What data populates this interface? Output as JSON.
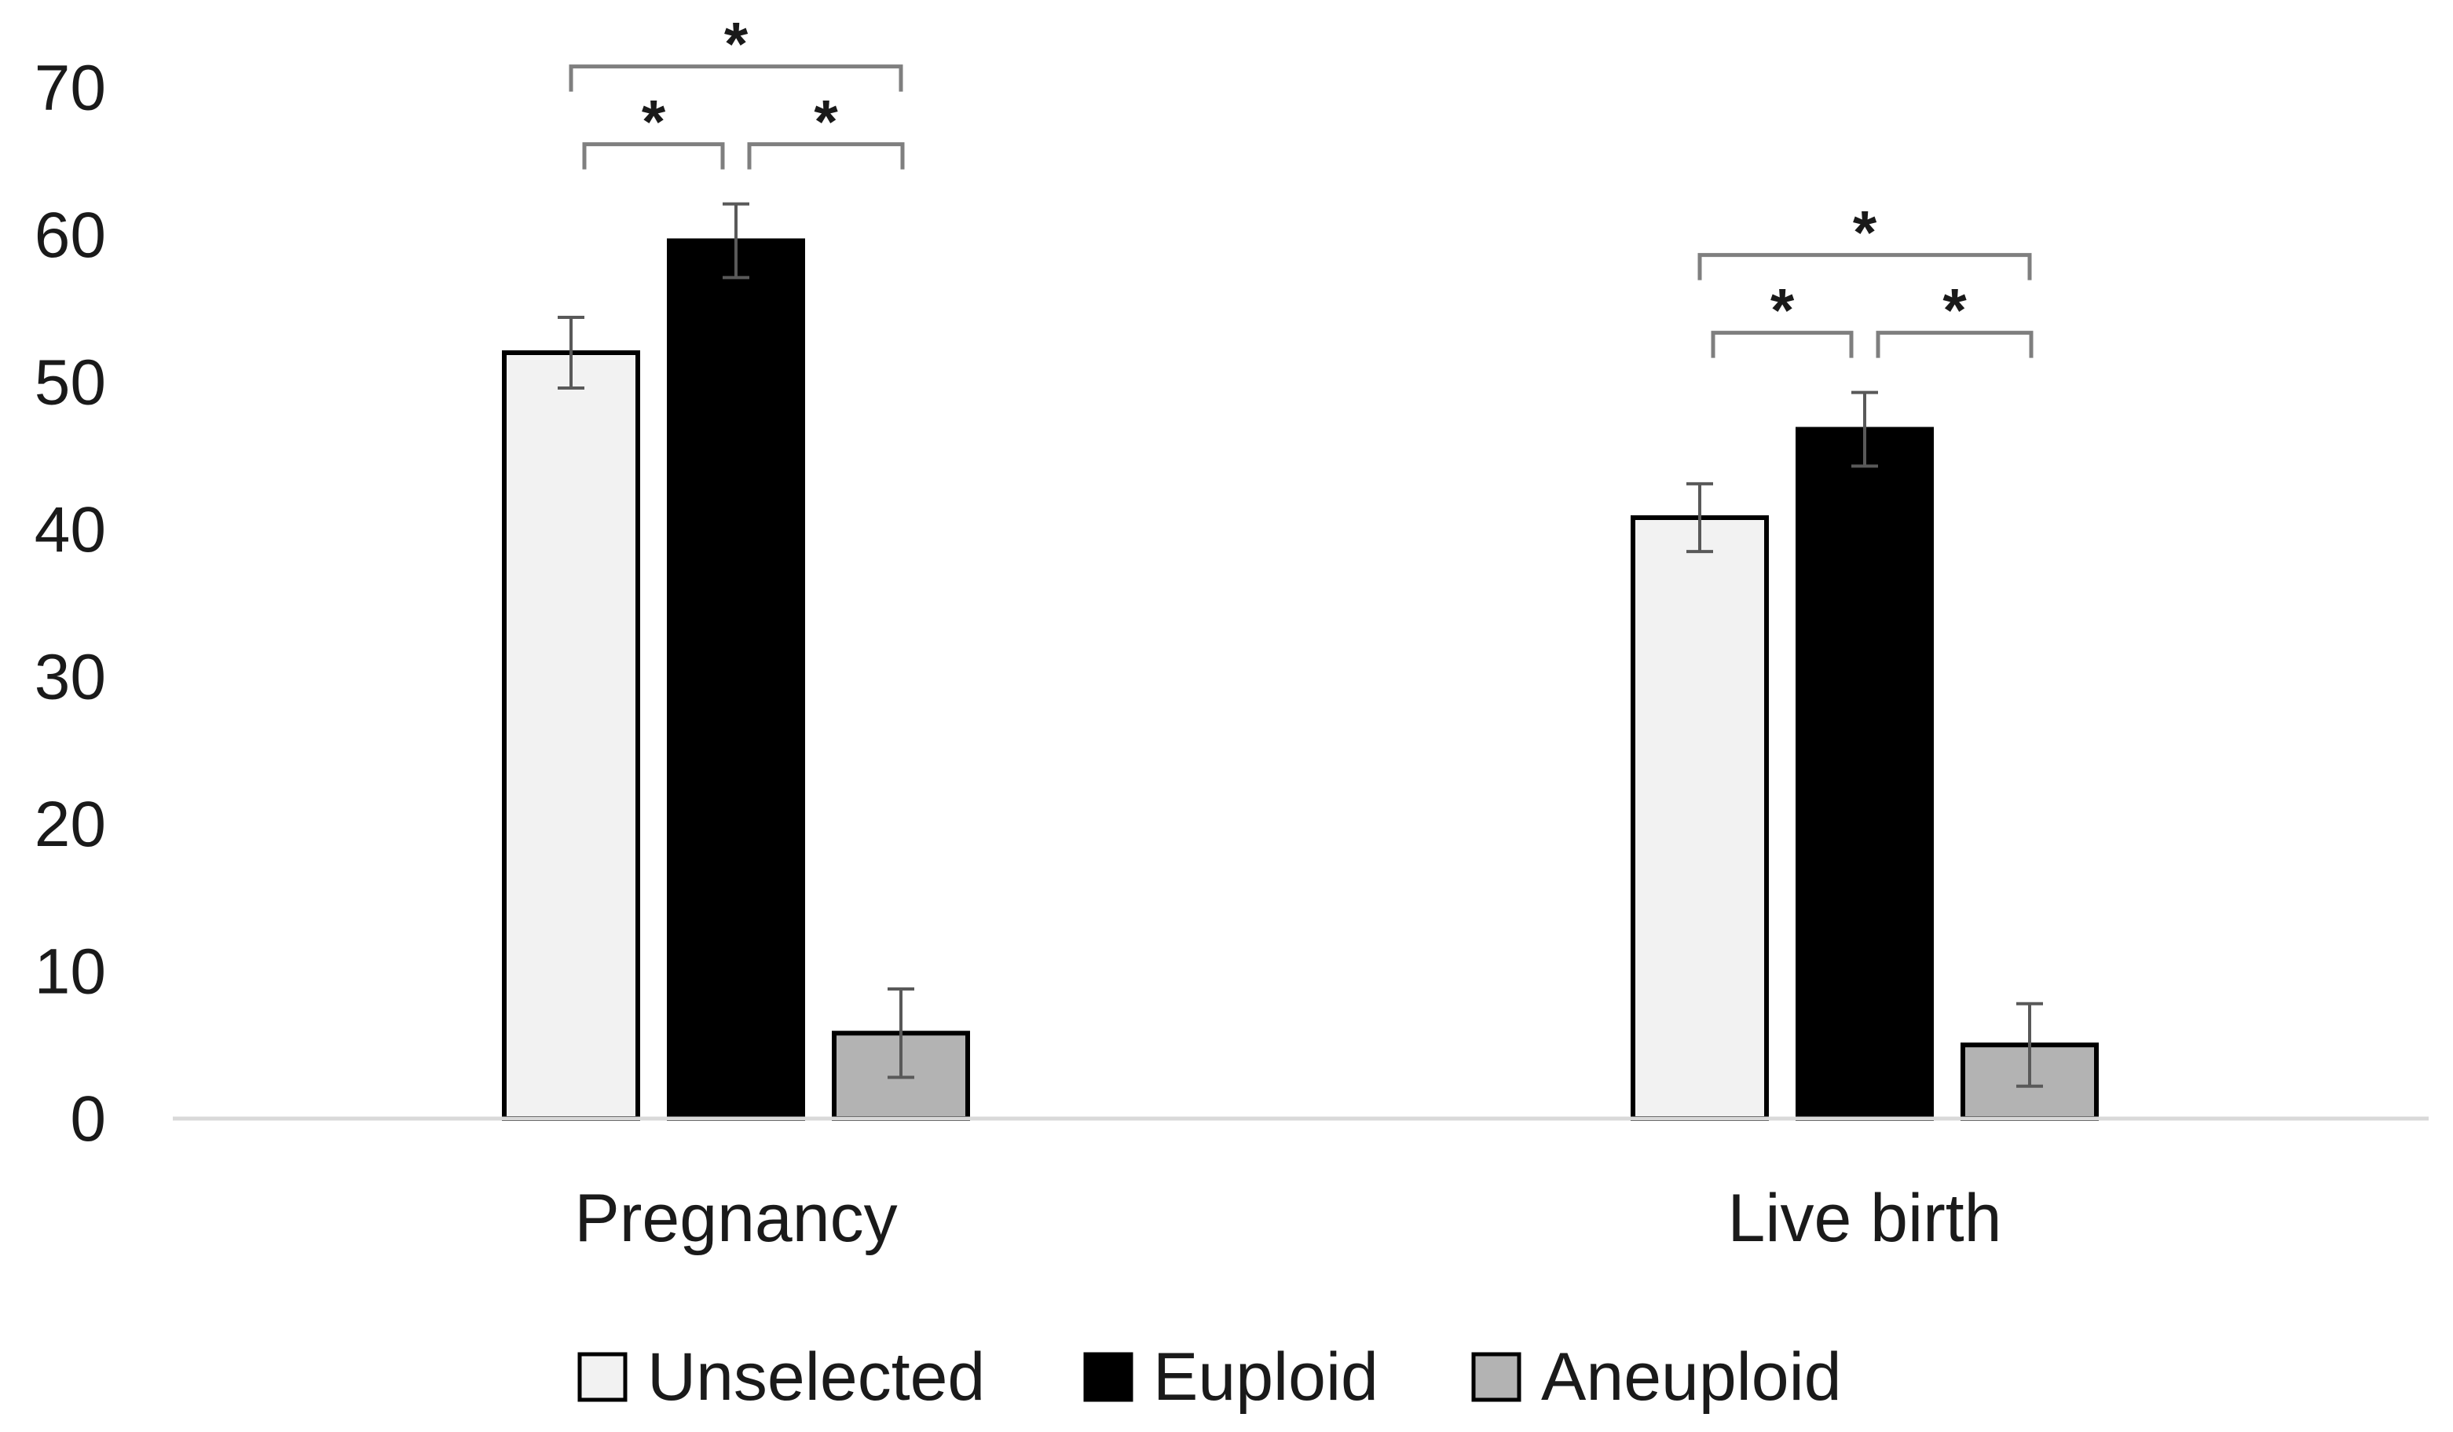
{
  "chart_data": {
    "type": "bar",
    "title": "",
    "xlabel": "",
    "ylabel": "",
    "ylim": [
      0,
      70
    ],
    "yticks": [
      0,
      10,
      20,
      30,
      40,
      50,
      60,
      70
    ],
    "categories": [
      "Pregnancy",
      "Live birth"
    ],
    "series": [
      {
        "name": "Unselected",
        "values": [
          52,
          40.8
        ],
        "errors": [
          2.4,
          2.3
        ],
        "color": "#f2f2f2"
      },
      {
        "name": "Euploid",
        "values": [
          59.6,
          46.8
        ],
        "errors": [
          2.5,
          2.5
        ],
        "color": "#000000"
      },
      {
        "name": "Aneuploid",
        "values": [
          5.8,
          5.0
        ],
        "errors": [
          3.0,
          2.8
        ],
        "color": "#b3b3b3"
      }
    ],
    "significance": [
      {
        "category": 0,
        "from": 0,
        "to": 2,
        "label": "*"
      },
      {
        "category": 0,
        "from": 0,
        "to": 1,
        "label": "*"
      },
      {
        "category": 0,
        "from": 1,
        "to": 2,
        "label": "*"
      },
      {
        "category": 1,
        "from": 0,
        "to": 2,
        "label": "*"
      },
      {
        "category": 1,
        "from": 0,
        "to": 1,
        "label": "*"
      },
      {
        "category": 1,
        "from": 1,
        "to": 2,
        "label": "*"
      }
    ],
    "legend_position": "bottom-center",
    "grid": false
  },
  "colors": {
    "axis": "#d9d9d9",
    "bar_outline": "#000000",
    "error_bar": "#595959",
    "bracket": "#7f7f7f",
    "text": "#1a1a1a"
  }
}
